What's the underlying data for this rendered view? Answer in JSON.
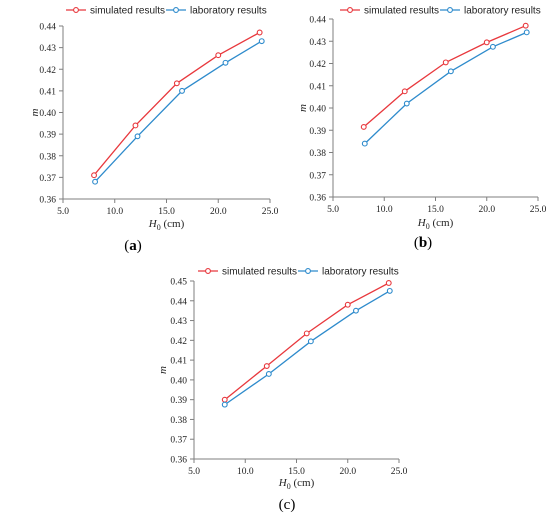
{
  "chart_data": [
    {
      "type": "line",
      "panel_label": "(a)",
      "xlabel": "H0 (cm)",
      "xlabel_main": "H",
      "xlabel_sub": "0",
      "xlabel_rest": " (cm)",
      "ylabel": "m",
      "xlim": [
        5.0,
        25.0
      ],
      "ylim": [
        0.36,
        0.44
      ],
      "xticks": [
        "5.0",
        "10.0",
        "15.0",
        "20.0",
        "25.0"
      ],
      "yticks": [
        "0.36",
        "0.37",
        "0.38",
        "0.39",
        "0.40",
        "0.41",
        "0.42",
        "0.43",
        "0.44"
      ],
      "legend_position": "top",
      "series": [
        {
          "name": "simulated results",
          "color": "#e8383d",
          "x": [
            8.0,
            12.0,
            16.0,
            20.0,
            24.0
          ],
          "y": [
            0.371,
            0.394,
            0.4135,
            0.4265,
            0.437
          ]
        },
        {
          "name": "laboratory results",
          "color": "#2e8bcc",
          "x": [
            8.1,
            12.2,
            16.5,
            20.7,
            24.2
          ],
          "y": [
            0.368,
            0.389,
            0.41,
            0.423,
            0.433
          ]
        }
      ]
    },
    {
      "type": "line",
      "panel_label": "(b)",
      "xlabel": "H0 (cm)",
      "xlabel_main": "H",
      "xlabel_sub": "0",
      "xlabel_rest": " (cm)",
      "ylabel": "m",
      "xlim": [
        5.0,
        25.0
      ],
      "ylim": [
        0.36,
        0.44
      ],
      "xticks": [
        "5.0",
        "10.0",
        "15.0",
        "20.0",
        "25.0"
      ],
      "yticks": [
        "0.36",
        "0.37",
        "0.38",
        "0.39",
        "0.40",
        "0.41",
        "0.42",
        "0.43",
        "0.44"
      ],
      "legend_position": "top",
      "series": [
        {
          "name": "simulated results",
          "color": "#e8383d",
          "x": [
            8.0,
            12.0,
            16.0,
            20.0,
            23.8
          ],
          "y": [
            0.3915,
            0.4075,
            0.4205,
            0.4295,
            0.437
          ]
        },
        {
          "name": "laboratory results",
          "color": "#2e8bcc",
          "x": [
            8.1,
            12.2,
            16.5,
            20.6,
            23.9
          ],
          "y": [
            0.384,
            0.402,
            0.4165,
            0.4275,
            0.434
          ]
        }
      ]
    },
    {
      "type": "line",
      "panel_label": "(c)",
      "xlabel": "H0 (cm)",
      "xlabel_main": "H",
      "xlabel_sub": "0",
      "xlabel_rest": " (cm)",
      "ylabel": "m",
      "xlim": [
        5.0,
        25.0
      ],
      "ylim": [
        0.36,
        0.45
      ],
      "xticks": [
        "5.0",
        "10.0",
        "15.0",
        "20.0",
        "25.0"
      ],
      "yticks": [
        "0.36",
        "0.37",
        "0.38",
        "0.39",
        "0.40",
        "0.41",
        "0.42",
        "0.43",
        "0.44",
        "0.45"
      ],
      "legend_position": "top",
      "series": [
        {
          "name": "simulated results",
          "color": "#e8383d",
          "x": [
            8.0,
            12.1,
            16.0,
            20.0,
            24.0
          ],
          "y": [
            0.39,
            0.407,
            0.4235,
            0.438,
            0.449
          ]
        },
        {
          "name": "laboratory results",
          "color": "#2e8bcc",
          "x": [
            8.0,
            12.3,
            16.4,
            20.8,
            24.1
          ],
          "y": [
            0.3875,
            0.403,
            0.4195,
            0.435,
            0.445
          ]
        }
      ]
    }
  ]
}
